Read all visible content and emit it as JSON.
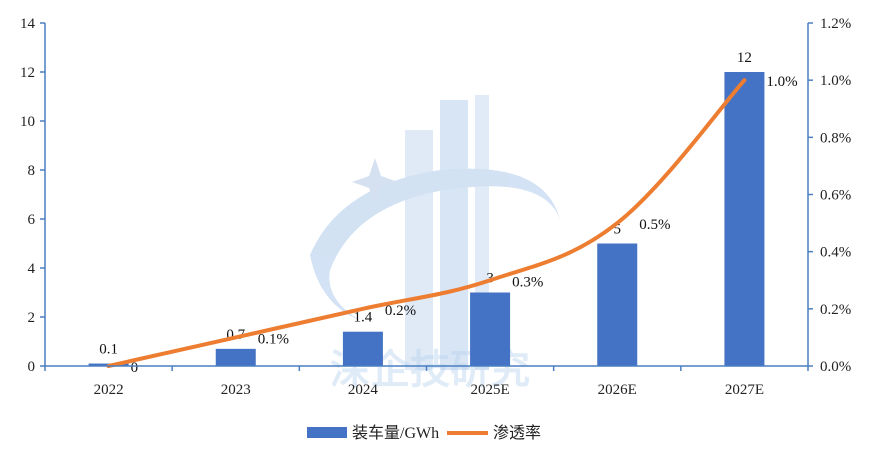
{
  "chart_data": {
    "type": "bar",
    "categories": [
      "2022",
      "2023",
      "2024",
      "2025E",
      "2026E",
      "2027E"
    ],
    "series": [
      {
        "name": "装车量/GWh",
        "type": "bar",
        "axis": "left",
        "color": "#4472c4",
        "values": [
          0.1,
          0.7,
          1.4,
          3,
          5,
          12
        ],
        "labels": [
          "0.1",
          "0.7",
          "1.4",
          "3",
          "5",
          "12"
        ]
      },
      {
        "name": "渗透率",
        "type": "line",
        "axis": "right",
        "color": "#ed7d31",
        "values": [
          0.0,
          0.1,
          0.2,
          0.3,
          0.5,
          1.0
        ],
        "labels": [
          "0",
          "0.1%",
          "0.2%",
          "0.3%",
          "0.5%",
          "1.0%"
        ]
      }
    ],
    "y_left": {
      "min": 0,
      "max": 14,
      "ticks": [
        "0",
        "2",
        "4",
        "6",
        "8",
        "10",
        "12",
        "14"
      ]
    },
    "y_right": {
      "min": 0,
      "max": 1.2,
      "ticks": [
        "0.0%",
        "0.2%",
        "0.4%",
        "0.6%",
        "0.8%",
        "1.0%",
        "1.2%"
      ]
    },
    "legend_position": "bottom",
    "grid": false,
    "axis_color": "#4a7fc1"
  },
  "watermark": {
    "text": "深企技研究"
  }
}
